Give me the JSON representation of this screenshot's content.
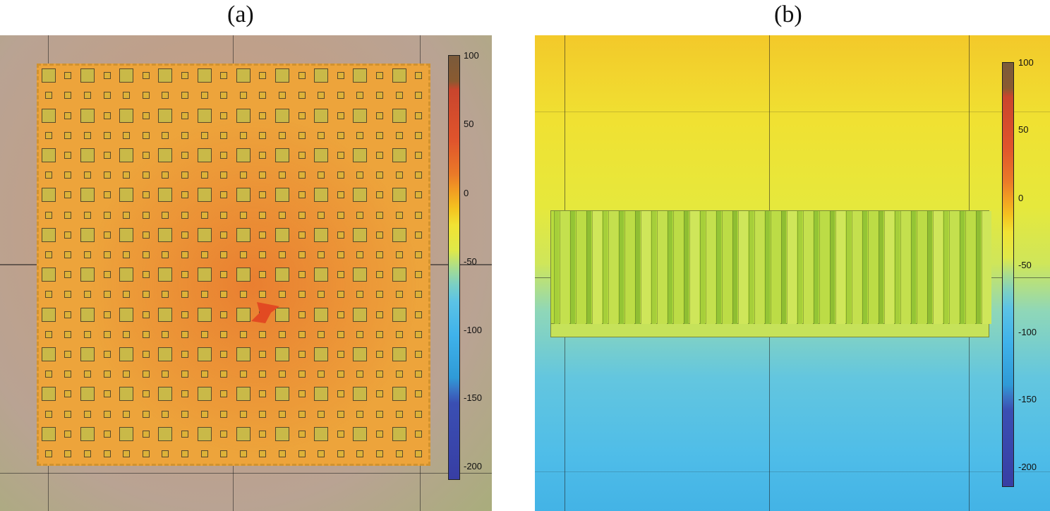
{
  "panels": [
    {
      "label": "(a)",
      "view": "top",
      "colorbar_ticks": [
        "100",
        "50",
        "0",
        "-50",
        "-100",
        "-150",
        "-200"
      ]
    },
    {
      "label": "(b)",
      "view": "side",
      "colorbar_ticks": [
        "100",
        "50",
        "0",
        "-50",
        "-100",
        "-150",
        "-200"
      ]
    }
  ],
  "colors": {
    "plate": "#eda43b",
    "hotspot": "#e24a22",
    "specimen": "#b8dc3c"
  }
}
